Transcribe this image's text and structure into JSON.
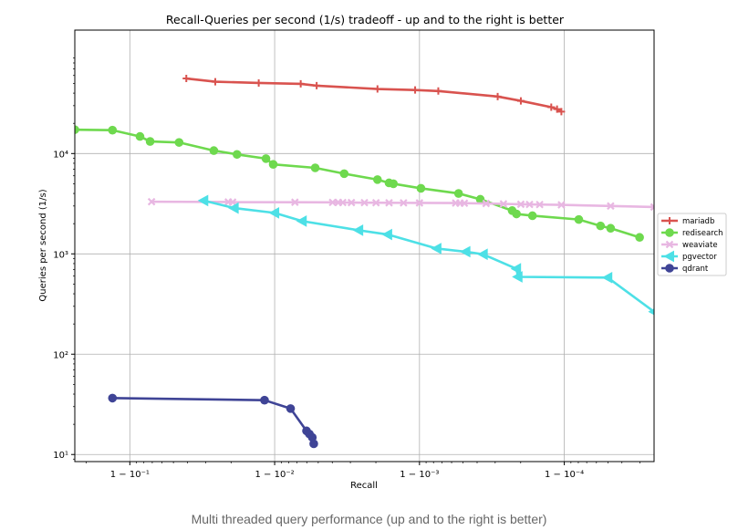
{
  "caption": "Multi threaded query performance (up and to the right is better)",
  "colors": {
    "grid": "#b0b0b0",
    "axis": "#000000"
  },
  "chart_data": {
    "type": "line",
    "title": "Recall-Queries per second (1/s) tradeoff - up and to the right is better",
    "xlabel": "Recall",
    "ylabel": "Queries per second (1/s)",
    "xscale": "logit, shown as 1 - 10^-k; x values stored as log10(1 - recall)",
    "yscale": "log",
    "xlim": [
      -0.62,
      -4.62
    ],
    "ylim": [
      8.5,
      170000
    ],
    "grid": true,
    "legend_position": "center-right, outside",
    "xticks": [
      {
        "value": -1,
        "label": "1 − 10⁻¹"
      },
      {
        "value": -2,
        "label": "1 − 10⁻²"
      },
      {
        "value": -3,
        "label": "1 − 10⁻³"
      },
      {
        "value": -4,
        "label": "1 − 10⁻⁴"
      }
    ],
    "yticks": [
      {
        "value": 10,
        "label": "10¹"
      },
      {
        "value": 100,
        "label": "10²"
      },
      {
        "value": 1000,
        "label": "10³"
      },
      {
        "value": 10000,
        "label": "10⁴"
      }
    ],
    "series": [
      {
        "name": "mariadb",
        "color": "#d9534f",
        "marker": "plus",
        "x": [
          -1.39,
          -1.59,
          -1.89,
          -2.18,
          -2.29,
          -2.71,
          -2.97,
          -3.13,
          -3.54,
          -3.7,
          -3.91,
          -3.95,
          -3.98
        ],
        "y": [
          56000,
          52000,
          50500,
          49500,
          47500,
          44000,
          43000,
          42000,
          37000,
          33500,
          29000,
          27700,
          26200
        ]
      },
      {
        "name": "redisearch",
        "color": "#6ed94e",
        "marker": "circle",
        "x": [
          -0.62,
          -0.88,
          -1.07,
          -1.14,
          -1.34,
          -1.58,
          -1.74,
          -1.94,
          -1.99,
          -2.28,
          -2.48,
          -2.71,
          -2.79,
          -2.82,
          -3.01,
          -3.27,
          -3.42,
          -3.64,
          -3.67,
          -3.78,
          -4.1,
          -4.25,
          -4.32,
          -4.52
        ],
        "y": [
          17300,
          17100,
          14800,
          13200,
          12900,
          10700,
          9800,
          8900,
          7800,
          7200,
          6300,
          5500,
          5100,
          5000,
          4500,
          4000,
          3500,
          2700,
          2500,
          2400,
          2200,
          1900,
          1800,
          1460
        ]
      },
      {
        "name": "weaviate",
        "color": "#e8b7e2",
        "marker": "x",
        "x": [
          -1.15,
          -1.68,
          -1.71,
          -2.14,
          -2.4,
          -2.44,
          -2.47,
          -2.53,
          -2.62,
          -2.7,
          -2.79,
          -2.89,
          -3.0,
          -3.25,
          -3.28,
          -3.31,
          -3.46,
          -3.58,
          -3.7,
          -3.76,
          -3.83,
          -3.98,
          -4.32,
          -4.62
        ],
        "y": [
          3310,
          3290,
          3280,
          3270,
          3260,
          3255,
          3250,
          3245,
          3240,
          3235,
          3230,
          3225,
          3220,
          3210,
          3205,
          3200,
          3180,
          3150,
          3120,
          3110,
          3100,
          3080,
          3000,
          2930
        ]
      },
      {
        "name": "pgvector",
        "color": "#4de0e6",
        "marker": "triangle-left",
        "x": [
          -1.51,
          -1.72,
          -2.0,
          -2.19,
          -2.58,
          -2.78,
          -3.12,
          -3.32,
          -3.44,
          -3.67,
          -3.68,
          -4.3,
          -4.62
        ],
        "y": [
          3400,
          2860,
          2560,
          2120,
          1720,
          1560,
          1130,
          1050,
          990,
          710,
          590,
          580,
          265
        ]
      },
      {
        "name": "qdrant",
        "color": "#3f4496",
        "marker": "circle",
        "x": [
          -0.88,
          -1.93,
          -2.11,
          -2.22,
          -2.24,
          -2.26,
          -2.27
        ],
        "y": [
          36500,
          34800,
          28700,
          17200,
          16000,
          14800,
          12800
        ],
        "y_scale_note": "values in units of 1/1000 (i.e. 36.5 qps)"
      }
    ]
  }
}
